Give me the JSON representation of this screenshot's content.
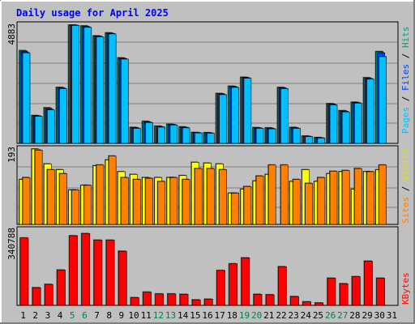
{
  "title": "Daily usage for April 2025",
  "colors": {
    "background": "#c0c0c0",
    "title": "#0000ff",
    "grid": "#808080",
    "hits": "#00a080",
    "files": "#0040ff",
    "pages": "#00c0ff",
    "visits": "#ffff00",
    "sites": "#ff8000",
    "kbytes": "#ff0000",
    "weekend_label": "#008040",
    "weekday_label": "#000000"
  },
  "axis_labels": {
    "panel1_max": "4883",
    "panel2_max": "193",
    "panel3_max": "340788"
  },
  "legend": {
    "pages": "Pages",
    "sep1": " / ",
    "files": "Files",
    "sep2": " / ",
    "hits": "Hits",
    "sites": "Sites",
    "sep3": " / ",
    "visits": "Visits",
    "kbytes": "KBytes"
  },
  "chart_data": [
    {
      "type": "bar",
      "title": "Daily usage for April 2025",
      "categories": [
        "1",
        "2",
        "3",
        "4",
        "5",
        "6",
        "7",
        "8",
        "9",
        "10",
        "11",
        "12",
        "13",
        "14",
        "15",
        "16",
        "17",
        "18",
        "19",
        "20",
        "21",
        "22",
        "23",
        "24",
        "25",
        "26",
        "27",
        "28",
        "29",
        "30",
        "31"
      ],
      "weekend_days": [
        "5",
        "6",
        "12",
        "13",
        "19",
        "20",
        "26",
        "27"
      ],
      "ylim": [
        0,
        4883
      ],
      "series": [
        {
          "name": "Hits",
          "values": [
            3830,
            1150,
            1470,
            2310,
            4883,
            4850,
            4440,
            4560,
            3530,
            660,
            910,
            710,
            790,
            680,
            450,
            440,
            2060,
            2360,
            2730,
            650,
            640,
            2310,
            660,
            300,
            240,
            1640,
            1350,
            1700,
            2710,
            3790,
            0
          ]
        },
        {
          "name": "Files",
          "values": [
            3780,
            1130,
            1420,
            2290,
            4880,
            4820,
            4420,
            4540,
            3500,
            640,
            880,
            690,
            770,
            660,
            440,
            430,
            2040,
            2340,
            2710,
            630,
            620,
            2290,
            640,
            290,
            230,
            1620,
            1330,
            1680,
            2680,
            3740,
            0
          ]
        },
        {
          "name": "Pages",
          "values": [
            3740,
            1120,
            1380,
            2260,
            4870,
            4790,
            4400,
            4520,
            3480,
            620,
            860,
            670,
            760,
            640,
            430,
            420,
            2010,
            2310,
            2690,
            620,
            600,
            2260,
            620,
            280,
            220,
            1590,
            1300,
            1660,
            2650,
            3580,
            0
          ]
        }
      ]
    },
    {
      "type": "bar",
      "ylim": [
        0,
        193
      ],
      "series": [
        {
          "name": "Visits",
          "values": [
            115,
            193,
            155,
            140,
            88,
            100,
            150,
            165,
            135,
            128,
            120,
            120,
            120,
            125,
            159,
            157,
            155,
            80,
            90,
            111,
            128,
            0,
            110,
            140,
            110,
            130,
            135,
            90,
            135,
            140,
            0
          ]
        },
        {
          "name": "Sites",
          "values": [
            120,
            190,
            140,
            130,
            88,
            100,
            152,
            175,
            120,
            115,
            118,
            110,
            120,
            115,
            143,
            143,
            140,
            80,
            97,
            124,
            152,
            152,
            115,
            105,
            120,
            136,
            138,
            143,
            135,
            152,
            0
          ]
        }
      ]
    },
    {
      "type": "bar",
      "ylim": [
        0,
        340788
      ],
      "series": [
        {
          "name": "KBytes",
          "values": [
            305000,
            80000,
            95000,
            160000,
            315000,
            325000,
            295000,
            295000,
            245000,
            35000,
            60000,
            52000,
            52000,
            50000,
            25000,
            28000,
            158000,
            188000,
            215000,
            50000,
            48000,
            175000,
            40000,
            16000,
            11000,
            123000,
            98000,
            130000,
            200000,
            123000,
            0
          ]
        }
      ]
    }
  ]
}
